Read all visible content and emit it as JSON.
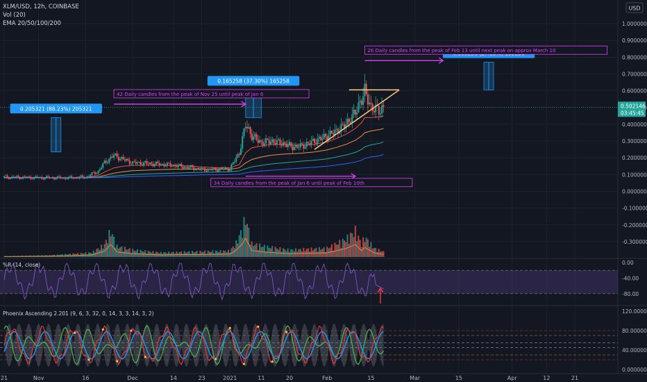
{
  "chart_data": {
    "type": "candlestick",
    "symbol_line": "XLM/USD, 12h, COINBASE",
    "indicator_labels": [
      "Vol (20)",
      "EMA 20/50/100/200"
    ],
    "currency": "USD",
    "price_axis": {
      "ylim": [
        -0.35,
        1.05
      ],
      "ticks": [
        "1.000000",
        "0.900000",
        "0.800000",
        "0.700000",
        "0.600000",
        "0.500000",
        "0.400000",
        "0.300000",
        "0.200000",
        "0.100000",
        "0.000000",
        "-0.100000",
        "-0.200000",
        "-0.300000"
      ],
      "tick_values": [
        1.0,
        0.9,
        0.8,
        0.7,
        0.6,
        0.5,
        0.4,
        0.3,
        0.2,
        0.1,
        0.0,
        -0.1,
        -0.2,
        -0.3
      ]
    },
    "last_price": "0.502146",
    "countdown": "03:45:45",
    "x_axis": {
      "labels": [
        "21",
        "Nov",
        "16",
        "Dec",
        "14",
        "23",
        "2021",
        "11",
        "20",
        "Feb",
        "15",
        "Mar",
        "15",
        "Apr",
        "12",
        "21"
      ],
      "dates": [
        "2020-10-21",
        "2020-11-01",
        "2020-11-16",
        "2020-12-01",
        "2020-12-14",
        "2020-12-23",
        "2021-01-01",
        "2021-01-11",
        "2021-01-20",
        "2021-02-01",
        "2021-02-15",
        "2021-03-01",
        "2021-03-15",
        "2021-04-01",
        "2021-04-12",
        "2021-04-21"
      ]
    },
    "price_series": {
      "dates": [
        "2020-10-21",
        "2020-11-01",
        "2020-11-10",
        "2020-11-16",
        "2020-11-20",
        "2020-11-22",
        "2020-11-25",
        "2020-11-28",
        "2020-12-01",
        "2020-12-07",
        "2020-12-14",
        "2020-12-20",
        "2020-12-23",
        "2020-12-27",
        "2021-01-01",
        "2021-01-04",
        "2021-01-06",
        "2021-01-08",
        "2021-01-11",
        "2021-01-14",
        "2021-01-18",
        "2021-01-21",
        "2021-01-24",
        "2021-01-28",
        "2021-02-01",
        "2021-02-04",
        "2021-02-07",
        "2021-02-10",
        "2021-02-12",
        "2021-02-13",
        "2021-02-15",
        "2021-02-18",
        "2021-02-19"
      ],
      "close": [
        0.085,
        0.082,
        0.08,
        0.085,
        0.12,
        0.17,
        0.215,
        0.19,
        0.17,
        0.165,
        0.155,
        0.14,
        0.13,
        0.13,
        0.135,
        0.23,
        0.4,
        0.33,
        0.29,
        0.3,
        0.285,
        0.265,
        0.27,
        0.3,
        0.33,
        0.36,
        0.4,
        0.47,
        0.55,
        0.6,
        0.5,
        0.48,
        0.502
      ]
    },
    "ema_series": [
      {
        "color": "#e0524a",
        "values": [
          0.083,
          0.082,
          0.081,
          0.083,
          0.095,
          0.115,
          0.14,
          0.15,
          0.155,
          0.157,
          0.155,
          0.15,
          0.145,
          0.142,
          0.14,
          0.16,
          0.23,
          0.26,
          0.27,
          0.28,
          0.28,
          0.276,
          0.274,
          0.28,
          0.295,
          0.315,
          0.34,
          0.375,
          0.41,
          0.44,
          0.44,
          0.445,
          0.45
        ]
      },
      {
        "color": "#e8914a",
        "values": [
          0.082,
          0.082,
          0.081,
          0.082,
          0.086,
          0.095,
          0.108,
          0.117,
          0.123,
          0.128,
          0.132,
          0.133,
          0.132,
          0.132,
          0.132,
          0.14,
          0.17,
          0.19,
          0.205,
          0.215,
          0.222,
          0.225,
          0.228,
          0.235,
          0.247,
          0.262,
          0.28,
          0.305,
          0.33,
          0.35,
          0.36,
          0.37,
          0.375
        ]
      },
      {
        "color": "#26a69a",
        "values": [
          0.08,
          0.081,
          0.081,
          0.081,
          0.083,
          0.086,
          0.091,
          0.096,
          0.1,
          0.105,
          0.109,
          0.112,
          0.114,
          0.115,
          0.117,
          0.122,
          0.135,
          0.146,
          0.155,
          0.163,
          0.17,
          0.175,
          0.18,
          0.186,
          0.194,
          0.205,
          0.217,
          0.232,
          0.25,
          0.265,
          0.277,
          0.288,
          0.295
        ]
      },
      {
        "color": "#2962ff",
        "values": [
          0.079,
          0.079,
          0.08,
          0.08,
          0.081,
          0.082,
          0.084,
          0.086,
          0.088,
          0.091,
          0.094,
          0.096,
          0.098,
          0.099,
          0.1,
          0.103,
          0.11,
          0.116,
          0.121,
          0.126,
          0.131,
          0.135,
          0.139,
          0.144,
          0.15,
          0.157,
          0.165,
          0.175,
          0.186,
          0.196,
          0.205,
          0.213,
          0.22
        ]
      }
    ],
    "volume_series": {
      "dates": [
        "2020-10-21",
        "2020-11-05",
        "2020-11-18",
        "2020-11-22",
        "2020-11-24",
        "2020-11-26",
        "2020-12-01",
        "2020-12-10",
        "2020-12-20",
        "2021-01-01",
        "2021-01-03",
        "2021-01-05",
        "2021-01-06",
        "2021-01-08",
        "2021-01-12",
        "2021-01-20",
        "2021-02-01",
        "2021-02-07",
        "2021-02-10",
        "2021-02-12",
        "2021-02-13",
        "2021-02-16",
        "2021-02-19"
      ],
      "values": [
        0.01,
        0.02,
        0.05,
        0.14,
        0.3,
        0.12,
        0.08,
        0.05,
        0.06,
        0.07,
        0.16,
        0.32,
        0.45,
        0.15,
        0.12,
        0.08,
        0.1,
        0.2,
        0.3,
        0.15,
        0.23,
        0.1,
        0.06
      ]
    },
    "annotations": [
      {
        "type": "measure",
        "text": "0.205321 (88.23%) 205321",
        "date_start": "2020-11-05",
        "date_end": "2020-11-06",
        "price_low": 0.235,
        "price_high": 0.44
      },
      {
        "type": "measure",
        "text": "0.165258 (37.30%) 165258",
        "date_start": "2021-01-06",
        "date_end": "2021-01-11",
        "price_low": 0.44,
        "price_high": 0.605
      },
      {
        "type": "measure",
        "text": "0.165258 (27.15%) 165258",
        "date_start": "2021-03-23",
        "date_end": "2021-03-25",
        "price_low": 0.605,
        "price_high": 0.77
      },
      {
        "type": "arrow-note",
        "text": "42 Daily candles from the peak of Nov 25 until peak of Jan 6",
        "date_start": "2020-11-25",
        "date_end": "2021-01-06",
        "price": 0.52
      },
      {
        "type": "arrow-note",
        "text": "34 Daily candles from the peak of Jan 6 until peak of Feb 10th",
        "date_start": "2021-01-06",
        "date_end": "2021-02-10",
        "price": 0.09
      },
      {
        "type": "arrow-note",
        "text": "26 Daily candles from the peak of Feb 13 until next peak on approx March 10",
        "date_start": "2021-02-13",
        "date_end": "2021-03-10",
        "price": 0.78
      }
    ],
    "triangle": {
      "apex_date": "2021-02-24",
      "apex_price": 0.605,
      "top_start_date": "2021-02-08",
      "top_start_price": 0.605,
      "bottom_start_date": "2021-01-28",
      "bottom_start_price": 0.25
    },
    "wr_panel": {
      "label": "%R (14, close)",
      "ticks": [
        "0.00",
        "-40.00",
        "-80.00"
      ],
      "tick_values": [
        0,
        -40,
        -80
      ],
      "ylim": [
        -100,
        0
      ],
      "band_top": -20,
      "band_bottom": -80,
      "last_value": -68,
      "arrow_date": "2021-02-18"
    },
    "phoenix_panel": {
      "label": "Phoenix Ascending 2.201 (9, 6, 3, 32, 0, 14, 3, 3, 14, 3, 2)",
      "ticks": [
        "120.000000",
        "80.000000",
        "40.000000",
        "0.000000"
      ],
      "tick_values": [
        120,
        80,
        40,
        0
      ],
      "ylim": [
        0,
        120
      ],
      "levels": [
        80,
        70,
        55,
        45,
        30,
        20
      ],
      "colors": {
        "fast": "#e53935",
        "slow": "#2196f3",
        "green": "#4caf50",
        "dots": "#ffb74d"
      }
    }
  }
}
